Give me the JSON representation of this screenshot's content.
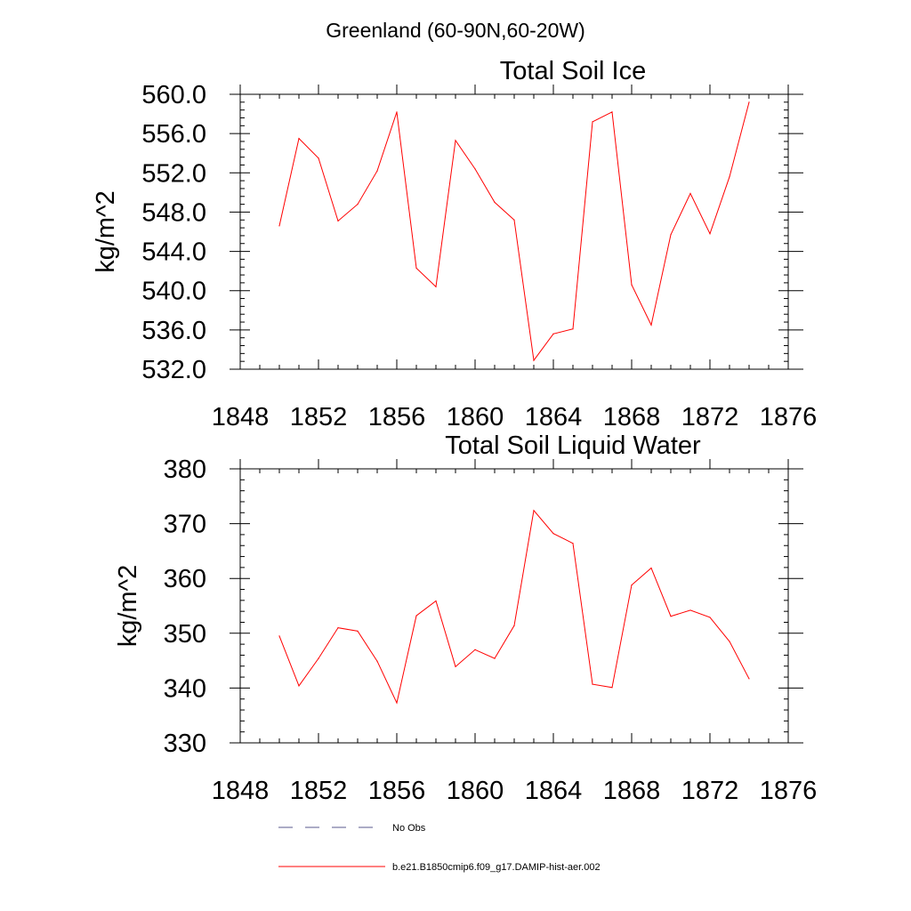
{
  "suptitle": "Greenland (60-90N,60-20W)",
  "colors": {
    "model_line": "#ff0000",
    "obs_line": "#5a5a8c",
    "axes": "#000000"
  },
  "legend": {
    "placement": "bottom-center",
    "obs_label": "No Obs",
    "model_label": "b.e21.B1850cmip6.f09_g17.DAMIP-hist-aer.002"
  },
  "chart_data": [
    {
      "type": "line",
      "title": "Total Soil Ice",
      "ylabel": "kg/m^2",
      "xlabel": "",
      "xlim": [
        1848,
        1876
      ],
      "ylim": [
        532,
        560
      ],
      "xticks": [
        1848,
        1852,
        1856,
        1860,
        1864,
        1868,
        1872,
        1876
      ],
      "xtick_labels": [
        "1848",
        "1852",
        "1856",
        "1860",
        "1864",
        "1868",
        "1872",
        "1876"
      ],
      "yticks": [
        532,
        536,
        540,
        544,
        548,
        552,
        556,
        560
      ],
      "ytick_labels": [
        "532.0",
        "536.0",
        "540.0",
        "544.0",
        "548.0",
        "552.0",
        "556.0",
        "560.0"
      ],
      "grid": false,
      "x": [
        1850,
        1851,
        1852,
        1853,
        1854,
        1855,
        1856,
        1857,
        1858,
        1859,
        1860,
        1861,
        1862,
        1863,
        1864,
        1865,
        1866,
        1867,
        1868,
        1869,
        1870,
        1871,
        1872,
        1873,
        1874
      ],
      "series": [
        {
          "name": "b.e21.B1850cmip6.f09_g17.DAMIP-hist-aer.002",
          "values": [
            546.6,
            555.5,
            553.5,
            547.1,
            548.8,
            552.2,
            558.2,
            542.3,
            540.4,
            555.3,
            552.4,
            549.0,
            547.2,
            532.9,
            535.6,
            536.1,
            557.2,
            558.2,
            540.6,
            536.5,
            545.7,
            549.9,
            545.8,
            551.6,
            559.2
          ]
        }
      ]
    },
    {
      "type": "line",
      "title": "Total Soil Liquid Water",
      "ylabel": "kg/m^2",
      "xlabel": "",
      "xlim": [
        1848,
        1876
      ],
      "ylim": [
        330,
        380
      ],
      "xticks": [
        1848,
        1852,
        1856,
        1860,
        1864,
        1868,
        1872,
        1876
      ],
      "xtick_labels": [
        "1848",
        "1852",
        "1856",
        "1860",
        "1864",
        "1868",
        "1872",
        "1876"
      ],
      "yticks": [
        330,
        340,
        350,
        360,
        370,
        380
      ],
      "ytick_labels": [
        "330",
        "340",
        "350",
        "360",
        "370",
        "380"
      ],
      "grid": false,
      "x": [
        1850,
        1851,
        1852,
        1853,
        1854,
        1855,
        1856,
        1857,
        1858,
        1859,
        1860,
        1861,
        1862,
        1863,
        1864,
        1865,
        1866,
        1867,
        1868,
        1869,
        1870,
        1871,
        1872,
        1873,
        1874
      ],
      "series": [
        {
          "name": "b.e21.B1850cmip6.f09_g17.DAMIP-hist-aer.002",
          "values": [
            349.5,
            340.4,
            345.4,
            351.0,
            350.4,
            344.9,
            337.3,
            353.2,
            355.9,
            343.9,
            347.0,
            345.4,
            351.4,
            372.4,
            368.2,
            366.4,
            340.7,
            340.1,
            358.8,
            361.9,
            353.1,
            354.2,
            352.9,
            348.5,
            341.7
          ]
        }
      ]
    }
  ]
}
